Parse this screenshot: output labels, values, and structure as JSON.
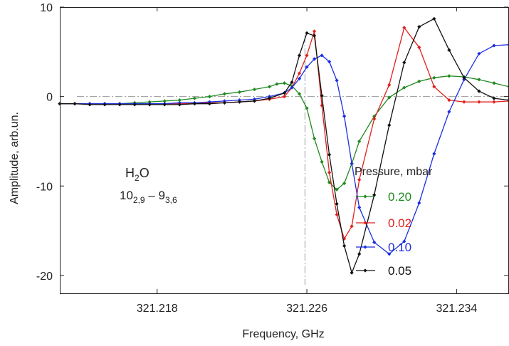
{
  "chart_data": {
    "type": "line",
    "xlabel": "Frequency, GHz",
    "ylabel": "Amplitude, arb.un.",
    "xlim": [
      321.2128,
      321.2368
    ],
    "ylim": [
      -22,
      10
    ],
    "x_ticks": [
      321.218,
      321.226,
      321.234
    ],
    "x_tick_labels": [
      "321.218",
      "321.226",
      "321.234"
    ],
    "y_ticks": [
      10,
      0,
      -10,
      -20
    ],
    "y_tick_labels": [
      "10",
      "0",
      "-10",
      "-20"
    ],
    "annotation": {
      "molecule_base": "H",
      "molecule_sub": "2",
      "molecule_tail": "O",
      "transition_a": "10",
      "transition_a_sub": "2,9",
      "transition_sep": " – ",
      "transition_b": "9",
      "transition_b_sub": "3,6"
    },
    "reference_lines": {
      "horizontal_y": 0,
      "vertical_x": 321.2259,
      "style": "dash-dot",
      "color": "#999999"
    },
    "legend": {
      "title": "Pressure, mbar",
      "placement": "right"
    },
    "series": [
      {
        "name": "0.20",
        "color": "#1f8a1f",
        "x": [
          321.2128,
          321.2136,
          321.2144,
          321.2152,
          321.216,
          321.2168,
          321.2176,
          321.2184,
          321.2192,
          321.22,
          321.2208,
          321.2216,
          321.2224,
          321.2232,
          321.224,
          321.2244,
          321.2248,
          321.2252,
          321.2256,
          321.226,
          321.2264,
          321.2268,
          321.2272,
          321.2276,
          321.228,
          321.2284,
          321.2288,
          321.2296,
          321.2304,
          321.2312,
          321.232,
          321.2328,
          321.2336,
          321.2344,
          321.2352,
          321.236,
          321.2368
        ],
        "y": [
          -0.8,
          -0.8,
          -0.8,
          -0.8,
          -0.8,
          -0.7,
          -0.6,
          -0.5,
          -0.4,
          -0.2,
          0.0,
          0.3,
          0.5,
          0.8,
          1.1,
          1.4,
          1.5,
          1.2,
          0.3,
          -1.3,
          -4.7,
          -7.3,
          -9.6,
          -10.4,
          -9.7,
          -7.5,
          -5.0,
          -2.2,
          -0.1,
          1.0,
          1.7,
          2.1,
          2.3,
          2.2,
          1.9,
          1.5,
          1.1
        ]
      },
      {
        "name": "0.02",
        "color": "#e0201c",
        "x": [
          321.2128,
          321.2136,
          321.2144,
          321.2152,
          321.216,
          321.2168,
          321.2176,
          321.2184,
          321.2192,
          321.22,
          321.2208,
          321.2216,
          321.2224,
          321.2232,
          321.224,
          321.2248,
          321.2252,
          321.2256,
          321.226,
          321.2264,
          321.2268,
          321.2272,
          321.2276,
          321.228,
          321.2284,
          321.2288,
          321.2296,
          321.2304,
          321.2312,
          321.232,
          321.2328,
          321.2336,
          321.2344,
          321.2352,
          321.236,
          321.2368
        ],
        "y": [
          -0.8,
          -0.8,
          -0.8,
          -0.8,
          -0.8,
          -0.8,
          -0.8,
          -0.8,
          -0.8,
          -0.8,
          -0.7,
          -0.7,
          -0.6,
          -0.5,
          -0.3,
          0.0,
          1.0,
          2.6,
          4.6,
          7.3,
          -1.0,
          -8.5,
          -13.2,
          -15.9,
          -14.5,
          -9.3,
          -2.5,
          1.3,
          7.7,
          5.5,
          1.1,
          -0.4,
          -0.6,
          -0.6,
          -0.6,
          -0.5
        ]
      },
      {
        "name": "0.10",
        "color": "#1c2ee0",
        "x": [
          321.2128,
          321.2136,
          321.2144,
          321.2152,
          321.216,
          321.2168,
          321.2176,
          321.2184,
          321.2192,
          321.22,
          321.2208,
          321.2216,
          321.2224,
          321.2232,
          321.224,
          321.2248,
          321.2252,
          321.2256,
          321.226,
          321.2264,
          321.2268,
          321.2272,
          321.2276,
          321.228,
          321.2284,
          321.2288,
          321.2296,
          321.2304,
          321.2312,
          321.232,
          321.2328,
          321.2336,
          321.2344,
          321.2352,
          321.236,
          321.2368
        ],
        "y": [
          -0.8,
          -0.8,
          -0.8,
          -0.8,
          -0.8,
          -0.8,
          -0.8,
          -0.8,
          -0.7,
          -0.7,
          -0.6,
          -0.5,
          -0.4,
          -0.3,
          0.0,
          0.4,
          1.0,
          2.0,
          3.3,
          4.2,
          4.6,
          3.9,
          1.8,
          -2.2,
          -7.5,
          -12.4,
          -16.3,
          -17.6,
          -16.2,
          -11.9,
          -6.4,
          -1.7,
          1.9,
          4.8,
          5.7,
          5.8
        ]
      },
      {
        "name": "0.05",
        "color": "#111111",
        "x": [
          321.2128,
          321.2136,
          321.2144,
          321.2152,
          321.216,
          321.2168,
          321.2176,
          321.2184,
          321.2192,
          321.22,
          321.2208,
          321.2216,
          321.2224,
          321.2232,
          321.224,
          321.2248,
          321.2252,
          321.2256,
          321.226,
          321.2264,
          321.2268,
          321.2272,
          321.2276,
          321.228,
          321.2284,
          321.2288,
          321.2296,
          321.2304,
          321.2312,
          321.232,
          321.2328,
          321.2336,
          321.2344,
          321.2352,
          321.236,
          321.2368
        ],
        "y": [
          -0.8,
          -0.8,
          -0.9,
          -0.9,
          -0.9,
          -0.9,
          -0.9,
          -0.9,
          -0.9,
          -0.8,
          -0.8,
          -0.7,
          -0.6,
          -0.5,
          -0.2,
          0.4,
          1.6,
          4.6,
          7.1,
          6.8,
          0.1,
          -6.5,
          -12.0,
          -16.7,
          -19.7,
          -17.6,
          -11.0,
          -3.2,
          3.8,
          7.8,
          8.7,
          5.2,
          2.1,
          0.6,
          -0.2,
          -0.4
        ]
      }
    ]
  }
}
